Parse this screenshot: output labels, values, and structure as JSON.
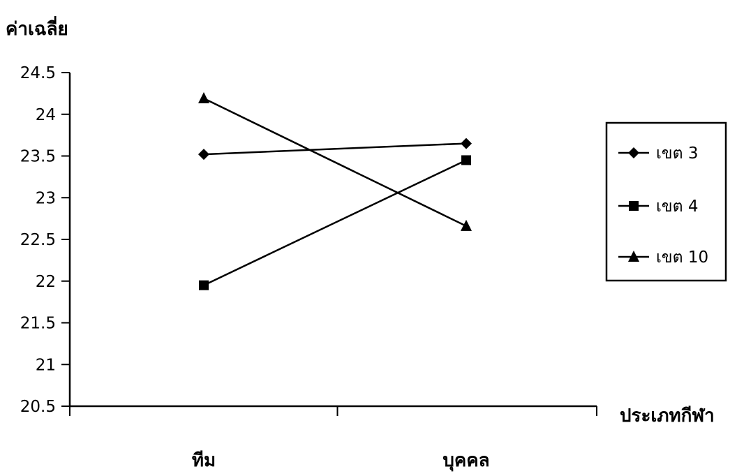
{
  "chart_data": {
    "type": "line",
    "ylabel": "ค่าเฉลี่ย",
    "xlabel": "ประเภทกีฬา",
    "categories": [
      "ทีม",
      "บุคคล"
    ],
    "ylim": [
      20.5,
      24.5
    ],
    "ytick_step": 0.5,
    "yticks": [
      "20.5",
      "21",
      "21.5",
      "22",
      "22.5",
      "23",
      "23.5",
      "24",
      "24.5"
    ],
    "grid": false,
    "legend_position": "right",
    "series": [
      {
        "name": "เขต 3",
        "marker": "diamond",
        "values": [
          23.52,
          23.65
        ]
      },
      {
        "name": "เขต 4",
        "marker": "square",
        "values": [
          21.95,
          23.45
        ]
      },
      {
        "name": "เขต 10",
        "marker": "triangle",
        "values": [
          24.19,
          22.66
        ]
      }
    ],
    "line_color": "#000000"
  }
}
